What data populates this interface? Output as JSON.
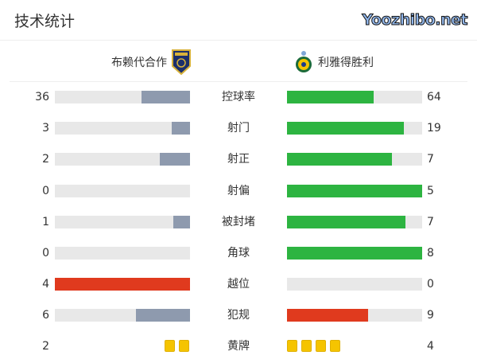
{
  "title": "技术统计",
  "home": {
    "name": "布赖代合作",
    "logo": "al-taawoun-crest"
  },
  "away": {
    "name": "利雅得胜利",
    "logo": "al-nassr-crest"
  },
  "colors": {
    "neutral": "#8e9aae",
    "good": "#2db441",
    "bad": "#e03a1e",
    "track": "#e8e8e8",
    "card": "#f5c400"
  },
  "stats": [
    {
      "label": "控球率",
      "home": 36,
      "away": 64,
      "home_color": "#8e9aae",
      "away_color": "#2db441"
    },
    {
      "label": "射门",
      "home": 3,
      "away": 19,
      "home_color": "#8e9aae",
      "away_color": "#2db441"
    },
    {
      "label": "射正",
      "home": 2,
      "away": 7,
      "home_color": "#8e9aae",
      "away_color": "#2db441"
    },
    {
      "label": "射偏",
      "home": 0,
      "away": 5,
      "home_color": "#8e9aae",
      "away_color": "#2db441"
    },
    {
      "label": "被封堵",
      "home": 1,
      "away": 7,
      "home_color": "#8e9aae",
      "away_color": "#2db441"
    },
    {
      "label": "角球",
      "home": 0,
      "away": 8,
      "home_color": "#8e9aae",
      "away_color": "#2db441"
    },
    {
      "label": "越位",
      "home": 4,
      "away": 0,
      "home_color": "#e03a1e",
      "away_color": "#8e9aae"
    },
    {
      "label": "犯规",
      "home": 6,
      "away": 9,
      "home_color": "#8e9aae",
      "away_color": "#e03a1e"
    }
  ],
  "yellow_cards": {
    "label": "黄牌",
    "home": 2,
    "away": 4
  },
  "watermark": "Yoozhibo.net"
}
